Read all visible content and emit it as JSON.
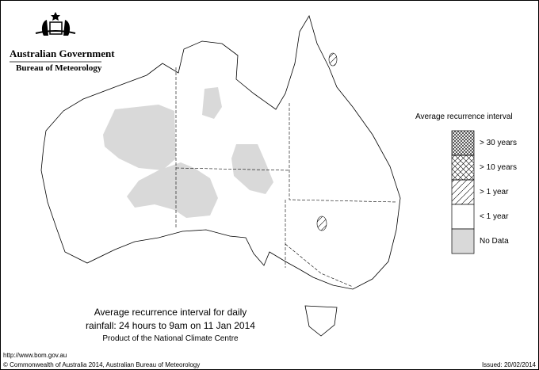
{
  "logo": {
    "org1": "Australian Government",
    "org2": "Bureau of Meteorology"
  },
  "legend": {
    "title": "Average recurrence interval",
    "items": [
      {
        "label": "> 30 years",
        "pattern": "dense-crosshatch"
      },
      {
        "label": "> 10 years",
        "pattern": "crosshatch"
      },
      {
        "label": "> 1 year",
        "pattern": "diagonal-hatch"
      },
      {
        "label": "< 1 year",
        "pattern": "white"
      },
      {
        "label": "No Data",
        "pattern": "grey",
        "color": "#d9d9d9"
      }
    ]
  },
  "title": {
    "line1": "Average recurrence interval for daily",
    "line2": "rainfall: 24 hours to 9am on 11 Jan 2014",
    "line3": "Product of the National Climate Centre"
  },
  "footer": {
    "url": "http://www.bom.gov.au",
    "copyright": "© Commonwealth of Australia 2014, Australian Bureau of Meteorology",
    "issued": "Issued: 20/02/2014"
  }
}
